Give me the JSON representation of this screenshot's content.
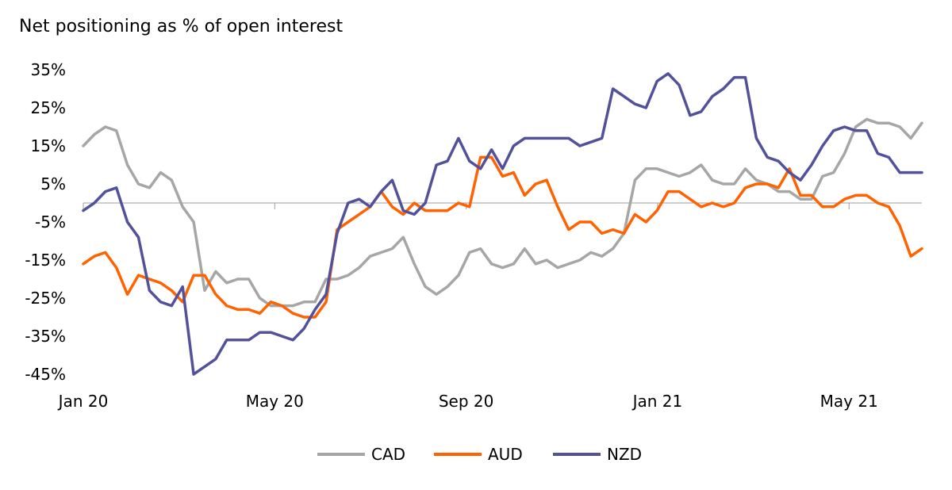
{
  "chart_data": {
    "type": "line",
    "title": "Net positioning as % of open interest",
    "xlabel": "",
    "ylabel": "",
    "x_tick_labels": [
      "Jan 20",
      "May 20",
      "Sep 20",
      "Jan 21",
      "May 21"
    ],
    "y_tick_labels": [
      "35%",
      "25%",
      "15%",
      "5%",
      "-5%",
      "-15%",
      "-25%",
      "-35%",
      "-45%"
    ],
    "ylim": [
      -45,
      35
    ],
    "grid": false,
    "legend_position": "bottom",
    "series": [
      {
        "name": "CAD",
        "color": "#a6a6a6",
        "values": [
          15,
          18,
          20,
          19,
          10,
          5,
          4,
          8,
          6,
          -1,
          -5,
          -23,
          -18,
          -21,
          -20,
          -20,
          -25,
          -27,
          -27,
          -27,
          -26,
          -26,
          -20,
          -20,
          -19,
          -17,
          -14,
          -13,
          -12,
          -9,
          -16,
          -22,
          -24,
          -22,
          -19,
          -13,
          -12,
          -16,
          -17,
          -16,
          -12,
          -16,
          -15,
          -17,
          -16,
          -15,
          -13,
          -14,
          -12,
          -8,
          6,
          9,
          9,
          8,
          7,
          8,
          10,
          6,
          5,
          5,
          9,
          6,
          5,
          3,
          3,
          1,
          1,
          7,
          8,
          13,
          20,
          22,
          21,
          21,
          20,
          17,
          21
        ]
      },
      {
        "name": "AUD",
        "color": "#ff6200",
        "values": [
          -16,
          -14,
          -13,
          -17,
          -24,
          -19,
          -20,
          -21,
          -23,
          -26,
          -19,
          -19,
          -24,
          -27,
          -28,
          -28,
          -29,
          -26,
          -27,
          -29,
          -30,
          -30,
          -26,
          -7,
          -5,
          -3,
          -1,
          3,
          -1,
          -3,
          0,
          -2,
          -2,
          -2,
          0,
          -1,
          12,
          12,
          7,
          8,
          2,
          5,
          6,
          -1,
          -7,
          -5,
          -5,
          -8,
          -7,
          -8,
          -3,
          -5,
          -2,
          3,
          3,
          1,
          -1,
          0,
          -1,
          0,
          4,
          5,
          5,
          4,
          9,
          2,
          2,
          -1,
          -1,
          1,
          2,
          2,
          0,
          -1,
          -6,
          -14,
          -12
        ]
      },
      {
        "name": "NZD",
        "color": "#525199",
        "values": [
          -2,
          0,
          3,
          4,
          -5,
          -9,
          -23,
          -26,
          -27,
          -22,
          -45,
          -43,
          -41,
          -36,
          -36,
          -36,
          -34,
          -34,
          -35,
          -36,
          -33,
          -28,
          -24,
          -8,
          0,
          1,
          -1,
          3,
          6,
          -2,
          -3,
          0,
          10,
          11,
          17,
          11,
          9,
          14,
          9,
          15,
          17,
          17,
          17,
          17,
          17,
          15,
          16,
          17,
          30,
          28,
          26,
          25,
          32,
          34,
          31,
          23,
          24,
          28,
          30,
          33,
          33,
          17,
          12,
          11,
          8,
          6,
          10,
          15,
          19,
          20,
          19,
          19,
          13,
          12,
          8,
          8,
          8
        ]
      }
    ]
  }
}
